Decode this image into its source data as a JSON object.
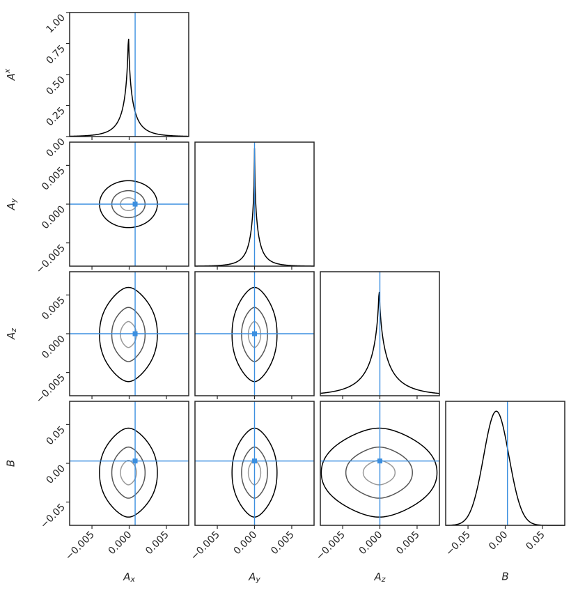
{
  "chart_data": {
    "type": "corner",
    "parameters": [
      {
        "key": "Ax",
        "axis_label": "A_x",
        "y_label": "A^x",
        "range": [
          -0.008,
          0.008
        ],
        "ticks": [
          -0.005,
          0.0,
          0.005
        ],
        "tick_labels": [
          "−0.005",
          "0.000",
          "0.005"
        ],
        "truth": 0.0008,
        "marginal_peak": -0.0001,
        "marginal_scale": 0.0009
      },
      {
        "key": "Ay",
        "axis_label": "A_y",
        "y_label": "A_y",
        "range": [
          -0.008,
          0.008
        ],
        "ticks": [
          -0.005,
          0.0,
          0.005
        ],
        "tick_labels": [
          "−0.005",
          "0.000",
          "0.005"
        ],
        "truth": 0.0,
        "marginal_peak": 0.0,
        "marginal_scale": 0.0007
      },
      {
        "key": "Az",
        "axis_label": "A_z",
        "y_label": "A_z",
        "range": [
          -0.008,
          0.008
        ],
        "ticks": [
          -0.005,
          0.0,
          0.005
        ],
        "tick_labels": [
          "−0.005",
          "0.000",
          "0.005"
        ],
        "truth": 0.0,
        "marginal_peak": -0.0001,
        "marginal_scale": 0.0018
      },
      {
        "key": "B",
        "axis_label": "B",
        "y_label": "B",
        "range": [
          -0.08,
          0.08
        ],
        "ticks": [
          -0.05,
          0.0,
          0.05
        ],
        "tick_labels": [
          "−0.05",
          "0.00",
          "0.05"
        ],
        "truth": 0.003,
        "marginal_peak": -0.012,
        "marginal_scale": 0.017
      }
    ],
    "top_marginal_axis": {
      "range": [
        0,
        1.0
      ],
      "ticks": [
        0.0,
        0.25,
        0.5,
        0.75,
        1.0
      ],
      "tick_labels": [
        "0.00",
        "0.25",
        "0.50",
        "0.75",
        "1.00"
      ]
    },
    "contour_levels": [
      "inner",
      "middle",
      "outer"
    ],
    "contour_colors": [
      "#999999",
      "#555555",
      "#000000"
    ],
    "truth_color": "#3b8fe0",
    "line_color": "#000000",
    "grid": false
  }
}
